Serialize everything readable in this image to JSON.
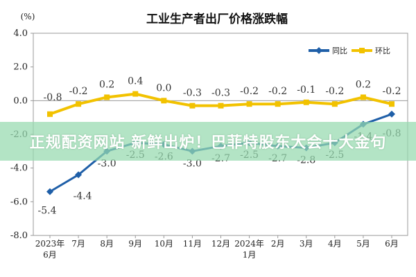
{
  "chart_data": {
    "type": "line",
    "title": "工业生产者出厂价格涨跌幅",
    "ylabel": "(%)",
    "xlabel": "",
    "ylim": [
      -8.0,
      4.0
    ],
    "yticks": [
      "4.0",
      "2.0",
      "0.0",
      "-2.0",
      "-4.0",
      "-6.0",
      "-8.0"
    ],
    "ytick_values": [
      4,
      2,
      0,
      -2,
      -4,
      -6,
      -8
    ],
    "categories": [
      [
        "2023年",
        "6月"
      ],
      [
        "7月"
      ],
      [
        "8月"
      ],
      [
        "9月"
      ],
      [
        "10月"
      ],
      [
        "11月"
      ],
      [
        "12月"
      ],
      [
        "2024年",
        "1月"
      ],
      [
        "2月"
      ],
      [
        "3月"
      ],
      [
        "4月"
      ],
      [
        "5月"
      ],
      [
        "6月"
      ]
    ],
    "series": [
      {
        "name": "同比",
        "color": "#1f5fa8",
        "values": [
          -5.4,
          -4.4,
          -3.0,
          -2.5,
          -2.6,
          -3.0,
          -2.7,
          -2.5,
          -2.7,
          -2.8,
          -2.5,
          -1.4,
          -0.8
        ],
        "labels": [
          "-5.4",
          "-4.4",
          "-3.0",
          "-2.5",
          "-2.6",
          "-3.0",
          "-2.7",
          "-2.5",
          "-2.7",
          "-2.8",
          "-2.5",
          "-1.4",
          "-0.8"
        ]
      },
      {
        "name": "环比",
        "color": "#f2c200",
        "values": [
          -0.8,
          -0.2,
          0.2,
          0.4,
          0.0,
          -0.3,
          -0.3,
          -0.2,
          -0.2,
          -0.1,
          -0.2,
          0.2,
          -0.2
        ],
        "labels": [
          "-0.8",
          "-0.2",
          "0.2",
          "0.4",
          "0.0",
          "-0.3",
          "-0.3",
          "-0.2",
          "-0.2",
          "-0.1",
          "-0.2",
          "0.2",
          "-0.2"
        ]
      }
    ],
    "legend_position": "top-right",
    "grid": false
  },
  "overlay": {
    "banner_text": "正规配资网站 新鲜出炉！巴菲特股东大会十大金句"
  }
}
